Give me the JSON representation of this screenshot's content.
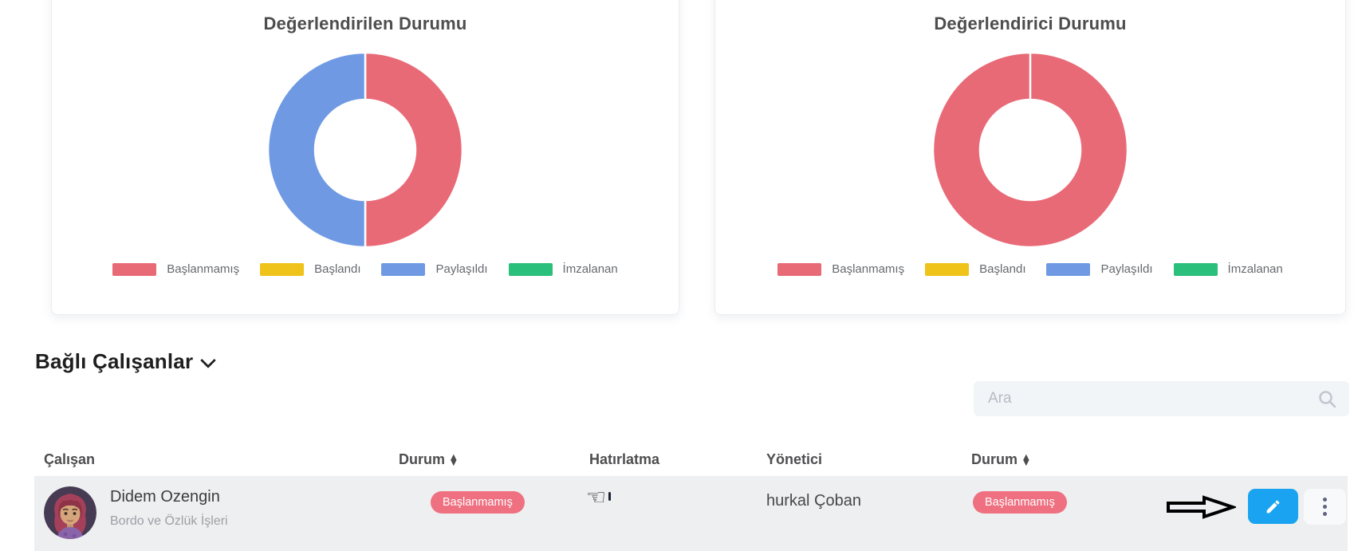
{
  "chart_data": [
    {
      "type": "donut",
      "title": "Değerlendirilen Durumu",
      "categories": [
        "Başlanmamış",
        "Başlandı",
        "Paylaşıldı",
        "İmzalanan"
      ],
      "values_percent": [
        50,
        0,
        50,
        0
      ],
      "colors": [
        "#e96a77",
        "#efc319",
        "#6f9ae3",
        "#2abf7b"
      ],
      "legend_position": "bottom"
    },
    {
      "type": "donut",
      "title": "Değerlendirici Durumu",
      "categories": [
        "Başlanmamış",
        "Başlandı",
        "Paylaşıldı",
        "İmzalanan"
      ],
      "values_percent": [
        100,
        0,
        0,
        0
      ],
      "colors": [
        "#e96a77",
        "#efc319",
        "#6f9ae3",
        "#2abf7b"
      ],
      "legend_position": "bottom"
    }
  ],
  "section": {
    "title": "Bağlı Çalışanlar"
  },
  "search": {
    "placeholder": "Ara"
  },
  "table": {
    "headers": [
      "Çalışan",
      "Durum",
      "Hatırlatma",
      "Yönetici",
      "Durum"
    ],
    "rows": [
      {
        "name": "Didem Ozengin",
        "department": "Bordo ve Özlük İşleri",
        "status": "Başlanmamış",
        "reminder_icon": "☜",
        "manager": "hurkal Çoban",
        "manager_status": "Başlanmamış"
      }
    ]
  },
  "colors": {
    "status_badge": "#ef7080",
    "edit_button": "#1aa3f0",
    "row_background": "#eeeff0",
    "chart_red": "#e96a77",
    "chart_yellow": "#efc319",
    "chart_blue": "#6f9ae3",
    "chart_green": "#2abf7b"
  }
}
